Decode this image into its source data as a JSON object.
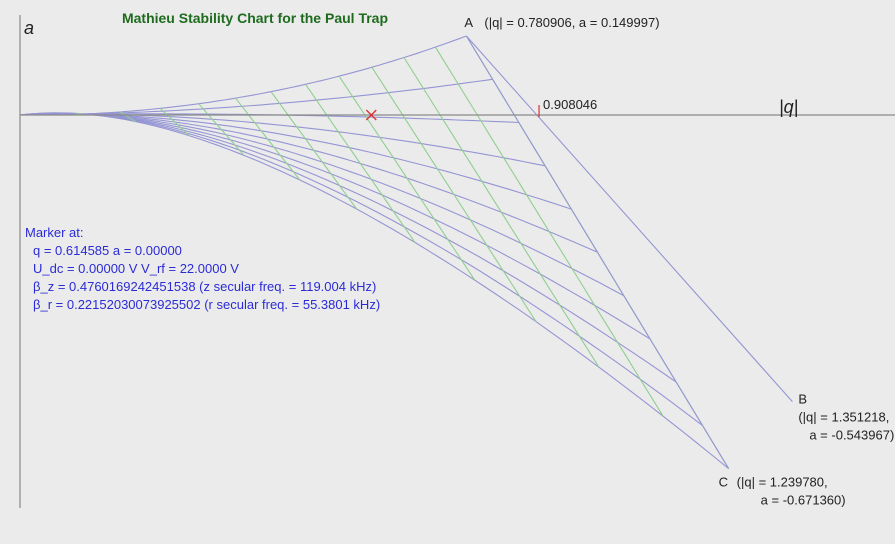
{
  "chart_data": {
    "type": "line",
    "title": "Mathieu Stability Chart for the Paul Trap",
    "xlabel": "|q|",
    "ylabel": "a",
    "xlim": [
      0,
      1.37
    ],
    "ylim": [
      -0.76,
      0.2
    ],
    "axis_marker": {
      "q": 0.908046,
      "label": "0.908046"
    },
    "vertices": {
      "A": {
        "q": 0.780906,
        "a": 0.149997,
        "label": "A",
        "text": "(|q| = 0.780906, a = 0.149997)"
      },
      "B": {
        "q": 1.351218,
        "a": -0.543967,
        "label": "B",
        "line1": "(|q| = 1.351218,",
        "line2": "a = -0.543967)"
      },
      "C": {
        "q": 1.23978,
        "a": -0.67136,
        "label": "C",
        "line1": "(|q| = 1.239780,",
        "line2": "a = -0.671360)"
      }
    },
    "marker": {
      "q": 0.614585,
      "a": 0.0
    },
    "colors": {
      "iso_beta_z": "#9595d4",
      "iso_beta_r": "#8fcf8f",
      "axis": "#8a8a8a",
      "marker": "#e03030",
      "info_text": "#2b2bd6",
      "title": "#1e6b1e"
    }
  },
  "info": {
    "header": "Marker at:",
    "line1": "q = 0.614585    a = 0.00000",
    "line2": "U_dc = 0.00000 V    V_rf = 22.0000 V",
    "line3": "β_z = 0.4760169242451538 (z secular freq. = 119.004 kHz)",
    "line4": "β_r = 0.22152030073925502 (r secular freq. = 55.3801 kHz)"
  }
}
